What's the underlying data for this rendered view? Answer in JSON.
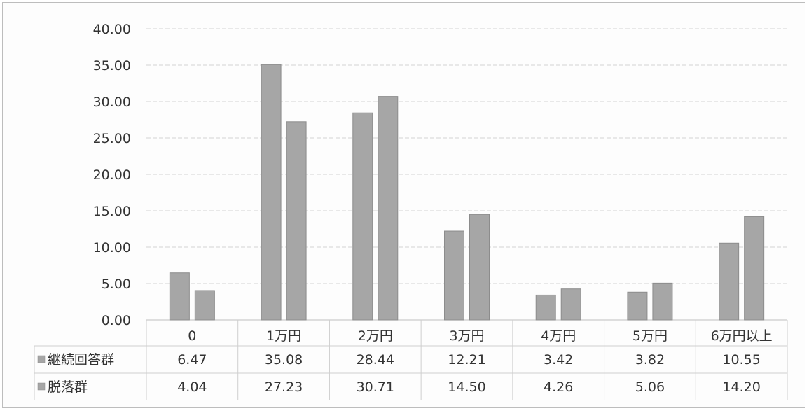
{
  "chart_data": {
    "type": "bar",
    "categories": [
      "0",
      "1万円",
      "2万円",
      "3万円",
      "4万円",
      "5万円",
      "6万円以上"
    ],
    "series": [
      {
        "name": "継続回答群",
        "values": [
          6.47,
          35.08,
          28.44,
          12.21,
          3.42,
          3.82,
          10.55
        ],
        "labels": [
          "6.47",
          "35.08",
          "28.44",
          "12.21",
          "3.42",
          "3.82",
          "10.55"
        ],
        "color": "#a6a6a6"
      },
      {
        "name": "脱落群",
        "values": [
          4.04,
          27.23,
          30.71,
          14.5,
          4.26,
          5.06,
          14.2
        ],
        "labels": [
          "4.04",
          "27.23",
          "30.71",
          "14.50",
          "4.26",
          "5.06",
          "14.20"
        ],
        "color": "#a6a6a6"
      }
    ],
    "yticks": [
      "0.00",
      "5.00",
      "10.00",
      "15.00",
      "20.00",
      "25.00",
      "30.00",
      "35.00",
      "40.00"
    ],
    "ylim": [
      0,
      40
    ],
    "grid": true,
    "data_table": true,
    "legend_in_table": true
  }
}
